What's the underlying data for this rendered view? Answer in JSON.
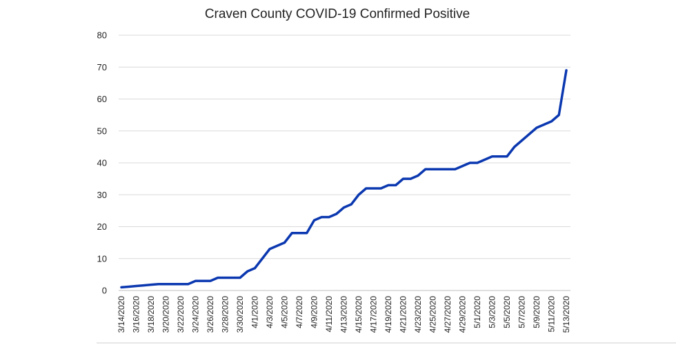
{
  "chart_data": {
    "type": "line",
    "title": "Craven County COVID-19 Confirmed Positive",
    "xlabel": "",
    "ylabel": "",
    "ylim": [
      0,
      80
    ],
    "yticks": [
      "0",
      "10",
      "20",
      "30",
      "40",
      "50",
      "60",
      "70",
      "80"
    ],
    "grid": true,
    "legend": "none",
    "x": [
      "3/14/2020",
      "3/15/2020",
      "3/16/2020",
      "3/17/2020",
      "3/18/2020",
      "3/19/2020",
      "3/20/2020",
      "3/21/2020",
      "3/22/2020",
      "3/23/2020",
      "3/24/2020",
      "3/25/2020",
      "3/26/2020",
      "3/27/2020",
      "3/28/2020",
      "3/29/2020",
      "3/30/2020",
      "3/31/2020",
      "4/1/2020",
      "4/2/2020",
      "4/3/2020",
      "4/4/2020",
      "4/5/2020",
      "4/6/2020",
      "4/7/2020",
      "4/8/2020",
      "4/9/2020",
      "4/10/2020",
      "4/11/2020",
      "4/12/2020",
      "4/13/2020",
      "4/14/2020",
      "4/15/2020",
      "4/16/2020",
      "4/17/2020",
      "4/18/2020",
      "4/19/2020",
      "4/20/2020",
      "4/21/2020",
      "4/22/2020",
      "4/23/2020",
      "4/24/2020",
      "4/25/2020",
      "4/26/2020",
      "4/27/2020",
      "4/28/2020",
      "4/29/2020",
      "4/30/2020",
      "5/1/2020",
      "5/2/2020",
      "5/3/2020",
      "5/4/2020",
      "5/5/2020",
      "5/6/2020",
      "5/7/2020",
      "5/8/2020",
      "5/9/2020",
      "5/10/2020",
      "5/11/2020",
      "5/12/2020",
      "5/13/2020"
    ],
    "xtick_labels": [
      "3/14/2020",
      "3/16/2020",
      "3/18/2020",
      "3/20/2020",
      "3/22/2020",
      "3/24/2020",
      "3/26/2020",
      "3/28/2020",
      "3/30/2020",
      "4/1/2020",
      "4/3/2020",
      "4/5/2020",
      "4/7/2020",
      "4/9/2020",
      "4/11/2020",
      "4/13/2020",
      "4/15/2020",
      "4/17/2020",
      "4/19/2020",
      "4/21/2020",
      "4/23/2020",
      "4/25/2020",
      "4/27/2020",
      "4/29/2020",
      "5/1/2020",
      "5/3/2020",
      "5/5/2020",
      "5/7/2020",
      "5/9/2020",
      "5/11/2020",
      "5/13/2020"
    ],
    "series": [
      {
        "color": "#0b38b0",
        "values": [
          1,
          1.2,
          1.4,
          1.6,
          1.8,
          2,
          2,
          2,
          2,
          2,
          3,
          3,
          3,
          4,
          4,
          4,
          4,
          6,
          7,
          10,
          13,
          14,
          15,
          18,
          18,
          18,
          22,
          23,
          23,
          24,
          26,
          27,
          30,
          32,
          32,
          32,
          33,
          33,
          35,
          35,
          36,
          38,
          38,
          38,
          38,
          38,
          39,
          40,
          40,
          41,
          42,
          42,
          42,
          45,
          47,
          49,
          51,
          52,
          53,
          55,
          69
        ]
      }
    ]
  }
}
